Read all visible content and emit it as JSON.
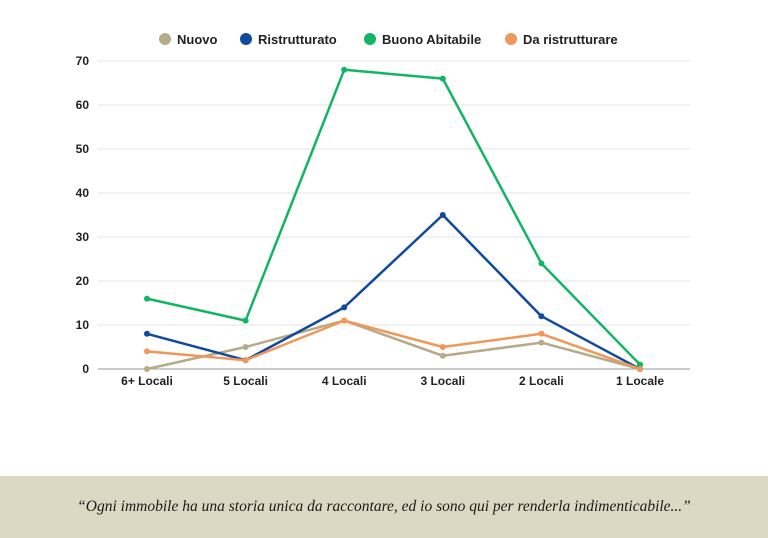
{
  "chart_data": {
    "type": "line",
    "title": "",
    "xlabel": "",
    "ylabel": "",
    "categories": [
      "6+ Locali",
      "5 Locali",
      "4 Locali",
      "3 Locali",
      "2 Locali",
      "1 Locale"
    ],
    "ylim": [
      0,
      70
    ],
    "yticks": [
      0,
      10,
      20,
      30,
      40,
      50,
      60,
      70
    ],
    "grid": true,
    "legend_position": "top",
    "series": [
      {
        "name": "Nuovo",
        "color": "#b5ab87",
        "values": [
          0,
          5,
          11,
          3,
          6,
          0
        ]
      },
      {
        "name": "Ristrutturato",
        "color": "#0f4aa0",
        "values": [
          8,
          2,
          14,
          35,
          12,
          0
        ]
      },
      {
        "name": "Buono Abitabile",
        "color": "#12b563",
        "values": [
          16,
          11,
          68,
          66,
          24,
          1
        ]
      },
      {
        "name": "Da ristrutturare",
        "color": "#f0975a",
        "values": [
          4,
          2,
          11,
          5,
          8,
          0
        ]
      }
    ]
  },
  "footer": {
    "quote": "“Ogni immobile ha una storia unica da raccontare, ed io sono qui per renderla indimenticabile...”"
  }
}
